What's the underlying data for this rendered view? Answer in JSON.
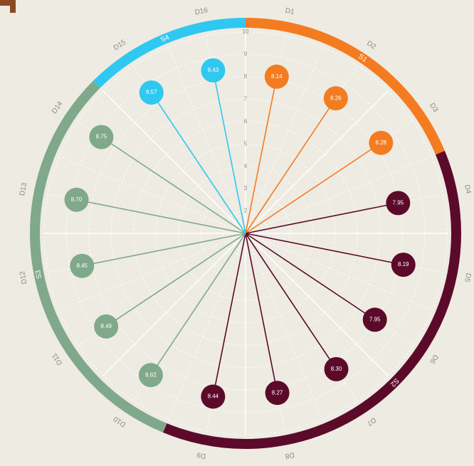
{
  "chart_data": {
    "type": "radial-lollipop",
    "categories": [
      "D1",
      "D2",
      "D3",
      "D4",
      "D5",
      "D6",
      "D7",
      "D8",
      "D9",
      "D10",
      "D11",
      "D12",
      "D13",
      "D14",
      "D15",
      "D16"
    ],
    "series": [
      {
        "name": "S1",
        "color": "#f47c20",
        "values": [
          8.14,
          8.26,
          8.28,
          null,
          null,
          null,
          null,
          null,
          null,
          null,
          null,
          null,
          null,
          null,
          null,
          null
        ],
        "value_labels": [
          "8.14",
          "8.26",
          "8.28",
          null,
          null,
          null,
          null,
          null,
          null,
          null,
          null,
          null,
          null,
          null,
          null,
          null
        ]
      },
      {
        "name": "S2",
        "color": "#5c0a2a",
        "values": [
          null,
          null,
          null,
          7.95,
          8.19,
          7.95,
          8.3,
          8.27,
          8.44,
          null,
          null,
          null,
          null,
          null,
          null,
          null
        ],
        "value_labels": [
          null,
          null,
          null,
          "7.95",
          "8.19",
          "7.95",
          "8.30",
          "8.27",
          "8.44",
          null,
          null,
          null,
          null,
          null,
          null,
          null
        ]
      },
      {
        "name": "S3",
        "color": "#7fa98a",
        "values": [
          null,
          null,
          null,
          null,
          null,
          null,
          null,
          null,
          null,
          8.62,
          8.49,
          8.45,
          8.7,
          8.75,
          null,
          null
        ],
        "value_labels": [
          null,
          null,
          null,
          null,
          null,
          null,
          null,
          null,
          null,
          "8.62",
          "8.49",
          "8.45",
          "8.70",
          "8.75",
          null,
          null
        ]
      },
      {
        "name": "S4",
        "color": "#2ec8f0",
        "values": [
          null,
          null,
          null,
          null,
          null,
          null,
          null,
          null,
          null,
          null,
          null,
          null,
          null,
          null,
          8.57,
          8.43
        ],
        "value_labels": [
          null,
          null,
          null,
          null,
          null,
          null,
          null,
          null,
          null,
          null,
          null,
          null,
          null,
          null,
          "8.57",
          "8.43"
        ]
      }
    ],
    "ylim": [
      1,
      10
    ],
    "yticks": [
      2,
      3,
      4,
      5,
      6,
      7,
      8,
      9,
      10
    ],
    "grid": true
  }
}
